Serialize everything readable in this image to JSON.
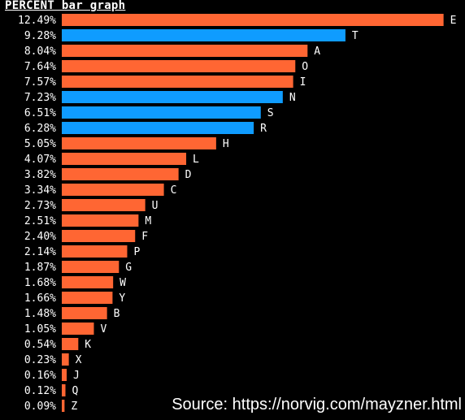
{
  "chart_data": {
    "type": "bar",
    "orientation": "horizontal",
    "title": "PERCENT bar graph",
    "categories": [
      "E",
      "T",
      "A",
      "O",
      "I",
      "N",
      "S",
      "R",
      "H",
      "L",
      "D",
      "C",
      "U",
      "M",
      "F",
      "P",
      "G",
      "W",
      "Y",
      "B",
      "V",
      "K",
      "X",
      "J",
      "Q",
      "Z"
    ],
    "values": [
      12.49,
      9.28,
      8.04,
      7.64,
      7.57,
      7.23,
      6.51,
      6.28,
      5.05,
      4.07,
      3.82,
      3.34,
      2.73,
      2.51,
      2.4,
      2.14,
      1.87,
      1.68,
      1.66,
      1.48,
      1.05,
      0.54,
      0.23,
      0.16,
      0.12,
      0.09
    ],
    "value_labels": [
      "12.49%",
      "9.28%",
      "8.04%",
      "7.64%",
      "7.57%",
      "7.23%",
      "6.51%",
      "6.28%",
      "5.05%",
      "4.07%",
      "3.82%",
      "3.34%",
      "2.73%",
      "2.51%",
      "2.40%",
      "2.14%",
      "1.87%",
      "1.68%",
      "1.66%",
      "1.48%",
      "1.05%",
      "0.54%",
      "0.23%",
      "0.16%",
      "0.12%",
      "0.09%"
    ],
    "highlighted": [
      "T",
      "N",
      "S",
      "R"
    ],
    "xlabel": "",
    "ylabel": "",
    "grid": false,
    "legend": "none"
  },
  "source": "Source: https://norvig.com/mayzner.html",
  "colors": {
    "bar": "#ff6633",
    "highlight": "#0f9cff",
    "text": "#ffffff",
    "background": "#000000"
  }
}
